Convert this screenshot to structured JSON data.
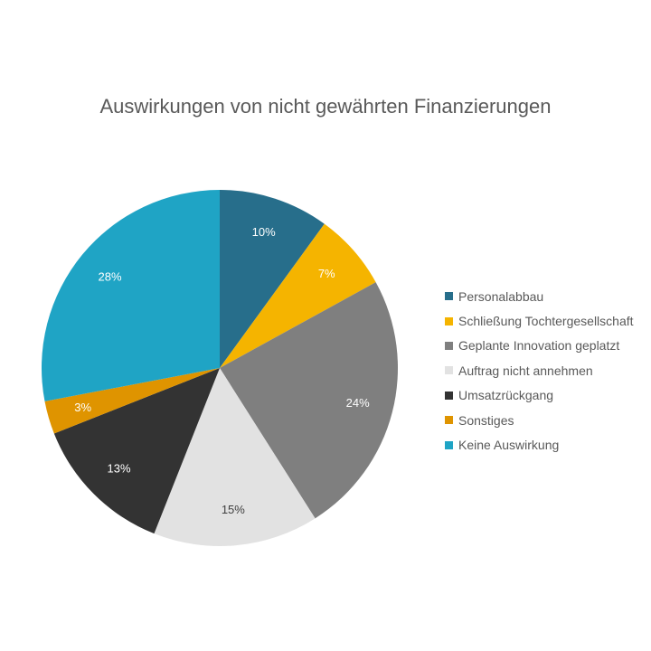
{
  "chart_data": {
    "type": "pie",
    "title": "Auswirkungen von nicht gewährten Finanzierungen",
    "legend_position": "right",
    "slices": [
      {
        "label": "Personalabbau",
        "value": 10,
        "display": "10%",
        "color": "#276e8b",
        "label_color": "#ffffff"
      },
      {
        "label": "Schließung Tochtergesellschaft",
        "value": 7,
        "display": "7%",
        "color": "#f5b400",
        "label_color": "#ffffff"
      },
      {
        "label": "Geplante Innovation geplatzt",
        "value": 24,
        "display": "24%",
        "color": "#7f7f7f",
        "label_color": "#ffffff"
      },
      {
        "label": "Auftrag nicht annehmen",
        "value": 15,
        "display": "15%",
        "color": "#e2e2e2",
        "label_color": "#404040"
      },
      {
        "label": "Umsatzrückgang",
        "value": 13,
        "display": "13%",
        "color": "#333333",
        "label_color": "#ffffff"
      },
      {
        "label": "Sonstiges",
        "value": 3,
        "display": "3%",
        "color": "#df9400",
        "label_color": "#ffffff"
      },
      {
        "label": "Keine Auswirkung",
        "value": 28,
        "display": "28%",
        "color": "#1fa4c5",
        "label_color": "#ffffff"
      }
    ]
  }
}
